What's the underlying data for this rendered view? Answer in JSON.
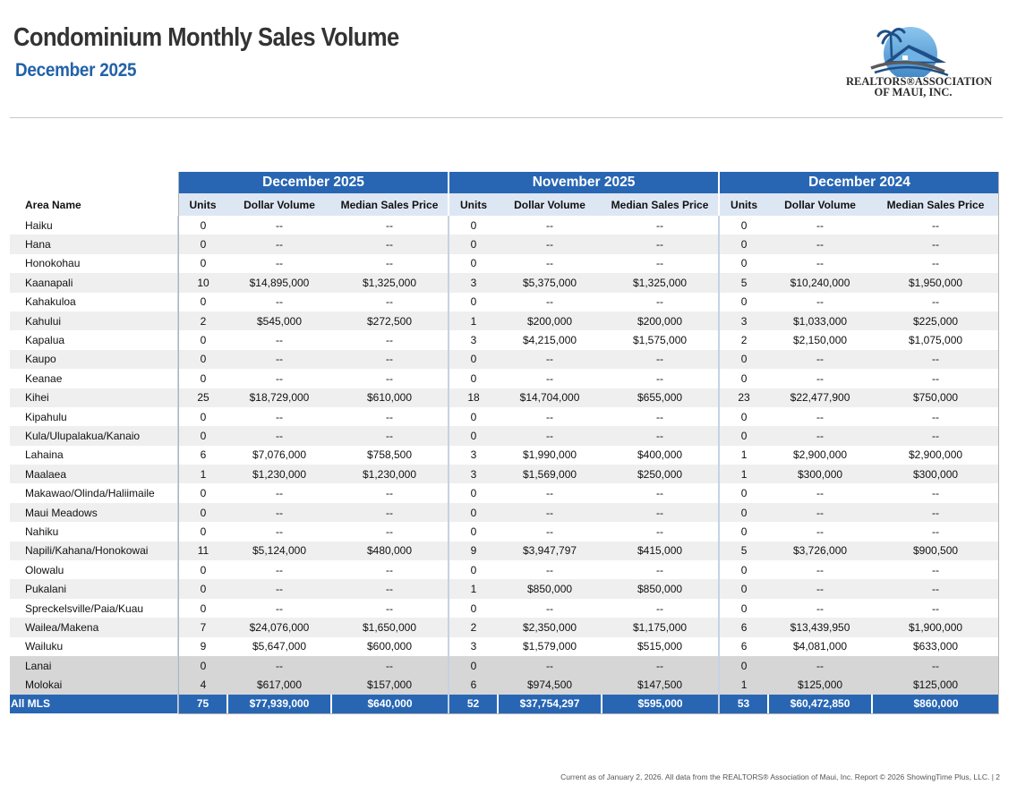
{
  "header": {
    "title": "Condominium Monthly Sales Volume",
    "subtitle": "December 2025"
  },
  "logo": {
    "line1": "REALTORS®ASSOCIATION",
    "line2": "OF MAUI, INC.",
    "colors": {
      "dark": "#1f4f86",
      "light": "#5aa6dc",
      "gray": "#5a5a5a"
    }
  },
  "table": {
    "periods": [
      "December 2025",
      "November 2025",
      "December 2024"
    ],
    "area_header": "Area Name",
    "column_headers": [
      "Units",
      "Dollar Volume",
      "Median Sales Price"
    ],
    "rows": [
      {
        "area": "Haiku",
        "values": [
          "0",
          "--",
          "--",
          "0",
          "--",
          "--",
          "0",
          "--",
          "--"
        ]
      },
      {
        "area": "Hana",
        "values": [
          "0",
          "--",
          "--",
          "0",
          "--",
          "--",
          "0",
          "--",
          "--"
        ]
      },
      {
        "area": "Honokohau",
        "values": [
          "0",
          "--",
          "--",
          "0",
          "--",
          "--",
          "0",
          "--",
          "--"
        ]
      },
      {
        "area": "Kaanapali",
        "values": [
          "10",
          "$14,895,000",
          "$1,325,000",
          "3",
          "$5,375,000",
          "$1,325,000",
          "5",
          "$10,240,000",
          "$1,950,000"
        ]
      },
      {
        "area": "Kahakuloa",
        "values": [
          "0",
          "--",
          "--",
          "0",
          "--",
          "--",
          "0",
          "--",
          "--"
        ]
      },
      {
        "area": "Kahului",
        "values": [
          "2",
          "$545,000",
          "$272,500",
          "1",
          "$200,000",
          "$200,000",
          "3",
          "$1,033,000",
          "$225,000"
        ]
      },
      {
        "area": "Kapalua",
        "values": [
          "0",
          "--",
          "--",
          "3",
          "$4,215,000",
          "$1,575,000",
          "2",
          "$2,150,000",
          "$1,075,000"
        ]
      },
      {
        "area": "Kaupo",
        "values": [
          "0",
          "--",
          "--",
          "0",
          "--",
          "--",
          "0",
          "--",
          "--"
        ]
      },
      {
        "area": "Keanae",
        "values": [
          "0",
          "--",
          "--",
          "0",
          "--",
          "--",
          "0",
          "--",
          "--"
        ]
      },
      {
        "area": "Kihei",
        "values": [
          "25",
          "$18,729,000",
          "$610,000",
          "18",
          "$14,704,000",
          "$655,000",
          "23",
          "$22,477,900",
          "$750,000"
        ]
      },
      {
        "area": "Kipahulu",
        "values": [
          "0",
          "--",
          "--",
          "0",
          "--",
          "--",
          "0",
          "--",
          "--"
        ]
      },
      {
        "area": "Kula/Ulupalakua/Kanaio",
        "values": [
          "0",
          "--",
          "--",
          "0",
          "--",
          "--",
          "0",
          "--",
          "--"
        ]
      },
      {
        "area": "Lahaina",
        "values": [
          "6",
          "$7,076,000",
          "$758,500",
          "3",
          "$1,990,000",
          "$400,000",
          "1",
          "$2,900,000",
          "$2,900,000"
        ]
      },
      {
        "area": "Maalaea",
        "values": [
          "1",
          "$1,230,000",
          "$1,230,000",
          "3",
          "$1,569,000",
          "$250,000",
          "1",
          "$300,000",
          "$300,000"
        ]
      },
      {
        "area": "Makawao/Olinda/Haliimaile",
        "values": [
          "0",
          "--",
          "--",
          "0",
          "--",
          "--",
          "0",
          "--",
          "--"
        ]
      },
      {
        "area": "Maui Meadows",
        "values": [
          "0",
          "--",
          "--",
          "0",
          "--",
          "--",
          "0",
          "--",
          "--"
        ]
      },
      {
        "area": "Nahiku",
        "values": [
          "0",
          "--",
          "--",
          "0",
          "--",
          "--",
          "0",
          "--",
          "--"
        ]
      },
      {
        "area": "Napili/Kahana/Honokowai",
        "values": [
          "11",
          "$5,124,000",
          "$480,000",
          "9",
          "$3,947,797",
          "$415,000",
          "5",
          "$3,726,000",
          "$900,500"
        ]
      },
      {
        "area": "Olowalu",
        "values": [
          "0",
          "--",
          "--",
          "0",
          "--",
          "--",
          "0",
          "--",
          "--"
        ]
      },
      {
        "area": "Pukalani",
        "values": [
          "0",
          "--",
          "--",
          "1",
          "$850,000",
          "$850,000",
          "0",
          "--",
          "--"
        ]
      },
      {
        "area": "Spreckelsville/Paia/Kuau",
        "values": [
          "0",
          "--",
          "--",
          "0",
          "--",
          "--",
          "0",
          "--",
          "--"
        ]
      },
      {
        "area": "Wailea/Makena",
        "values": [
          "7",
          "$24,076,000",
          "$1,650,000",
          "2",
          "$2,350,000",
          "$1,175,000",
          "6",
          "$13,439,950",
          "$1,900,000"
        ]
      },
      {
        "area": "Wailuku",
        "values": [
          "9",
          "$5,647,000",
          "$600,000",
          "3",
          "$1,579,000",
          "$515,000",
          "6",
          "$4,081,000",
          "$633,000"
        ]
      },
      {
        "area": "Lanai",
        "island": true,
        "values": [
          "0",
          "--",
          "--",
          "0",
          "--",
          "--",
          "0",
          "--",
          "--"
        ]
      },
      {
        "area": "Molokai",
        "island": true,
        "values": [
          "4",
          "$617,000",
          "$157,000",
          "6",
          "$974,500",
          "$147,500",
          "1",
          "$125,000",
          "$125,000"
        ]
      }
    ],
    "total": {
      "area": "All MLS",
      "values": [
        "75",
        "$77,939,000",
        "$640,000",
        "52",
        "$37,754,297",
        "$595,000",
        "53",
        "$60,472,850",
        "$860,000"
      ]
    }
  },
  "footer": {
    "text": "Current as of January 2, 2026. All data from the REALTORS® Association of Maui, Inc. Report © 2026 ShowingTime Plus, LLC.  |  2"
  }
}
